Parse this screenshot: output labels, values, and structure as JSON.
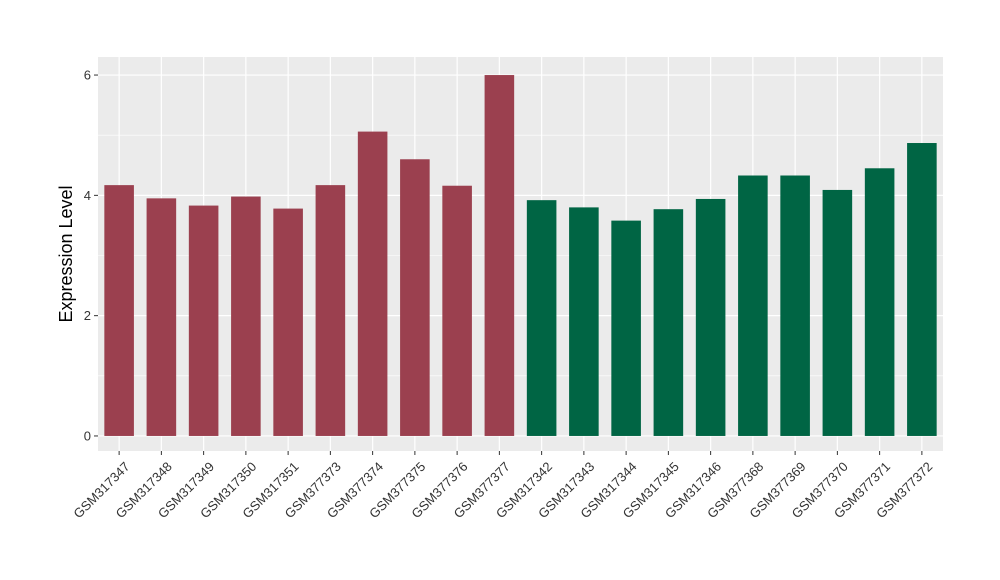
{
  "chart_data": {
    "type": "bar",
    "title": "",
    "xlabel": "",
    "ylabel": "Expression Level",
    "ylim": [
      -0.25,
      6.3
    ],
    "yticks": [
      0,
      2,
      4,
      6
    ],
    "grid": true,
    "legend": "none",
    "categories": [
      "GSM317347",
      "GSM317348",
      "GSM317349",
      "GSM317350",
      "GSM317351",
      "GSM377373",
      "GSM377374",
      "GSM377375",
      "GSM377376",
      "GSM377377",
      "GSM317342",
      "GSM317343",
      "GSM317344",
      "GSM317345",
      "GSM317346",
      "GSM377368",
      "GSM377369",
      "GSM377370",
      "GSM377371",
      "GSM377372"
    ],
    "values": [
      4.17,
      3.95,
      3.83,
      3.98,
      3.78,
      4.17,
      5.06,
      4.6,
      4.16,
      6.0,
      3.92,
      3.8,
      3.58,
      3.77,
      3.94,
      4.33,
      4.33,
      4.09,
      4.45,
      4.87
    ],
    "bar_colors": [
      "#9b404f",
      "#9b404f",
      "#9b404f",
      "#9b404f",
      "#9b404f",
      "#9b404f",
      "#9b404f",
      "#9b404f",
      "#9b404f",
      "#9b404f",
      "#006544",
      "#006544",
      "#006544",
      "#006544",
      "#006544",
      "#006544",
      "#006544",
      "#006544",
      "#006544",
      "#006544"
    ],
    "panel_background": "#ebebeb",
    "gridline_color": "#ffffff"
  }
}
